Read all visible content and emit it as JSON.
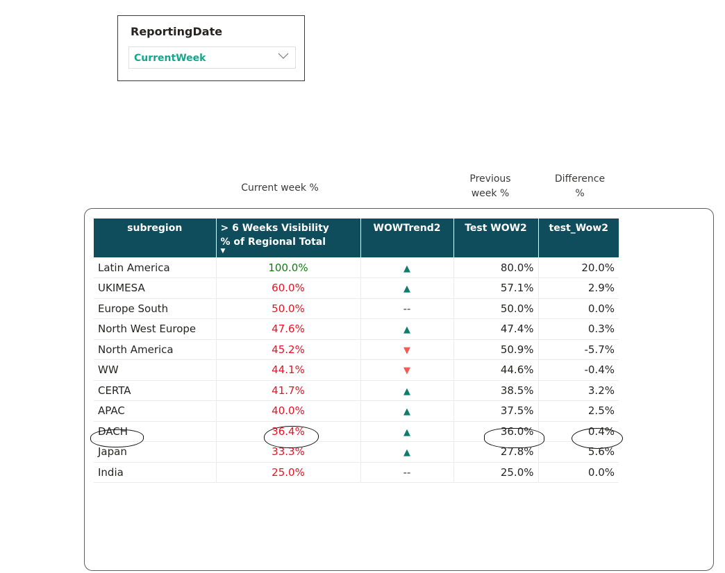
{
  "slicer": {
    "title": "ReportingDate",
    "value": "CurrentWeek",
    "chevron_icon": "chevron-down-icon"
  },
  "annotations": {
    "current_week": "Current week %",
    "previous_week_line1": "Previous",
    "previous_week_line2": "week %",
    "difference_line1": "Difference",
    "difference_line2": "%"
  },
  "table": {
    "headers": {
      "subregion": "subregion",
      "visibility_line1": "> 6 Weeks Visibility",
      "visibility_line2": "% of Regional Total",
      "trend": "WOWTrend2",
      "test_wow": "Test WOW2",
      "test_wow_lower": "test_Wow2"
    },
    "colors": {
      "header_bg": "#0f4c5c",
      "good": "#107c10",
      "bad": "#e81123",
      "up_arrow": "#0f7b6c",
      "down_arrow": "#f25c54"
    },
    "rows": [
      {
        "subregion": "Latin America",
        "pct": "100.0%",
        "pct_status": "good",
        "trend": "up",
        "trend_text": "▲",
        "prev": "80.0%",
        "diff": "20.0%"
      },
      {
        "subregion": "UKIMESA",
        "pct": "60.0%",
        "pct_status": "bad",
        "trend": "up",
        "trend_text": "▲",
        "prev": "57.1%",
        "diff": "2.9%"
      },
      {
        "subregion": "Europe South",
        "pct": "50.0%",
        "pct_status": "bad",
        "trend": "flat",
        "trend_text": "--",
        "prev": "50.0%",
        "diff": "0.0%"
      },
      {
        "subregion": "North West Europe",
        "pct": "47.6%",
        "pct_status": "bad",
        "trend": "up",
        "trend_text": "▲",
        "prev": "47.4%",
        "diff": "0.3%"
      },
      {
        "subregion": "North America",
        "pct": "45.2%",
        "pct_status": "bad",
        "trend": "down",
        "trend_text": "▼",
        "prev": "50.9%",
        "diff": "-5.7%"
      },
      {
        "subregion": "WW",
        "pct": "44.1%",
        "pct_status": "bad",
        "trend": "down",
        "trend_text": "▼",
        "prev": "44.6%",
        "diff": "-0.4%"
      },
      {
        "subregion": "CERTA",
        "pct": "41.7%",
        "pct_status": "bad",
        "trend": "up",
        "trend_text": "▲",
        "prev": "38.5%",
        "diff": "3.2%"
      },
      {
        "subregion": "APAC",
        "pct": "40.0%",
        "pct_status": "bad",
        "trend": "up",
        "trend_text": "▲",
        "prev": "37.5%",
        "diff": "2.5%"
      },
      {
        "subregion": "DACH",
        "pct": "36.4%",
        "pct_status": "bad",
        "trend": "up",
        "trend_text": "▲",
        "prev": "36.0%",
        "diff": "0.4%"
      },
      {
        "subregion": "Japan",
        "pct": "33.3%",
        "pct_status": "bad",
        "trend": "up",
        "trend_text": "▲",
        "prev": "27.8%",
        "diff": "5.6%"
      },
      {
        "subregion": "India",
        "pct": "25.0%",
        "pct_status": "bad",
        "trend": "flat",
        "trend_text": "--",
        "prev": "25.0%",
        "diff": "0.0%"
      }
    ]
  }
}
